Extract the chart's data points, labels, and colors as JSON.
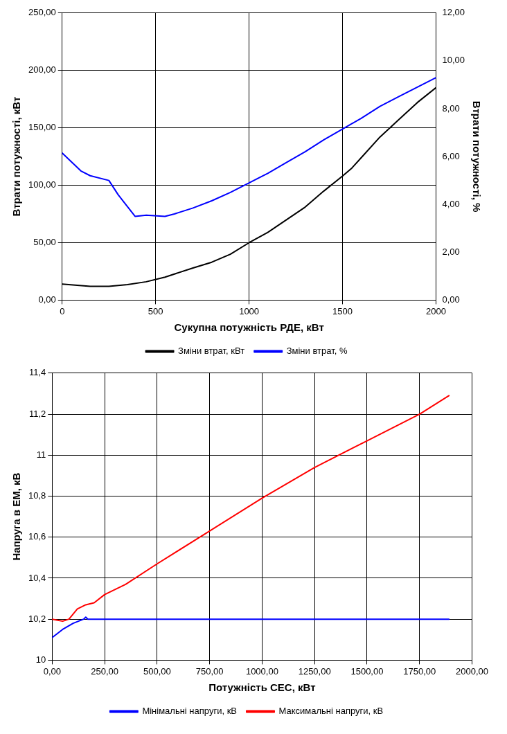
{
  "chart_data": [
    {
      "type": "line",
      "xlabel": "Сукупна потужність РДЕ, кВт",
      "ylabel": "Втрати потужності, кВт",
      "y2label": "Втрати потужності, %",
      "xlim": [
        0,
        2000
      ],
      "xticks": [
        0,
        500,
        1000,
        1500,
        2000
      ],
      "ylim": [
        0,
        250
      ],
      "yticks": [
        {
          "value": 0,
          "label": "0,00"
        },
        {
          "value": 50,
          "label": "50,00"
        },
        {
          "value": 100,
          "label": "100,00"
        },
        {
          "value": 150,
          "label": "150,00"
        },
        {
          "value": 200,
          "label": "200,00"
        },
        {
          "value": 250,
          "label": "250,00"
        }
      ],
      "y2lim": [
        0,
        12
      ],
      "y2ticks": [
        {
          "value": 0,
          "label": "0,00"
        },
        {
          "value": 2,
          "label": "2,00"
        },
        {
          "value": 4,
          "label": "4,00"
        },
        {
          "value": 6,
          "label": "6,00"
        },
        {
          "value": 8,
          "label": "8,00"
        },
        {
          "value": 10,
          "label": "10,00"
        },
        {
          "value": 12,
          "label": "12,00"
        }
      ],
      "grid": true,
      "legend": "bottom",
      "marker": "none",
      "line_style": "solid",
      "series": [
        {
          "name": "Зміни втрат, кВт",
          "color": "#000000",
          "x": [
            0,
            150,
            250,
            350,
            450,
            550,
            700,
            800,
            900,
            1000,
            1100,
            1200,
            1300,
            1400,
            1500,
            1550,
            1600,
            1700,
            1800,
            1900,
            2000
          ],
          "values": [
            14,
            12,
            12,
            13.5,
            16,
            20,
            28,
            33,
            40,
            50,
            59,
            70,
            81,
            95,
            108,
            115,
            124,
            142,
            157,
            172,
            185
          ]
        },
        {
          "name": "Зміни втрат, %",
          "color": "#0000ff",
          "axis": "y2",
          "x": [
            0,
            100,
            150,
            250,
            300,
            350,
            390,
            450,
            550,
            600,
            700,
            800,
            900,
            1000,
            1100,
            1200,
            1300,
            1400,
            1500,
            1600,
            1700,
            1800,
            1900,
            2000
          ],
          "values": [
            6.15,
            5.4,
            5.2,
            5.0,
            4.4,
            3.9,
            3.5,
            3.55,
            3.5,
            3.6,
            3.85,
            4.15,
            4.5,
            4.9,
            5.3,
            5.75,
            6.2,
            6.7,
            7.15,
            7.6,
            8.1,
            8.5,
            8.9,
            9.3
          ]
        }
      ]
    },
    {
      "type": "line",
      "xlabel": "Потужність СЕС, кВт",
      "ylabel": "Напруга в ЕМ, кВ",
      "xlim": [
        0,
        2000
      ],
      "xticks": [
        {
          "value": 0,
          "label": "0,00"
        },
        {
          "value": 250,
          "label": "250,00"
        },
        {
          "value": 500,
          "label": "500,00"
        },
        {
          "value": 750,
          "label": "750,00"
        },
        {
          "value": 1000,
          "label": "1000,00"
        },
        {
          "value": 1250,
          "label": "1250,00"
        },
        {
          "value": 1500,
          "label": "1500,00"
        },
        {
          "value": 1750,
          "label": "1750,00"
        },
        {
          "value": 2000,
          "label": "2000,00"
        }
      ],
      "ylim": [
        10,
        11.4
      ],
      "yticks": [
        10,
        {
          "value": 10.2,
          "label": "10,2"
        },
        {
          "value": 10.4,
          "label": "10,4"
        },
        {
          "value": 10.6,
          "label": "10,6"
        },
        {
          "value": 10.8,
          "label": "10,8"
        },
        11,
        {
          "value": 11.2,
          "label": "11,2"
        },
        {
          "value": 11.4,
          "label": "11,4"
        }
      ],
      "grid": true,
      "legend": "bottom",
      "marker": "none",
      "line_style": "solid",
      "series": [
        {
          "name": "Мінімальні напруги, кВ",
          "color": "#0000ff",
          "x": [
            0,
            50,
            100,
            150,
            160,
            170,
            1890
          ],
          "values": [
            10.11,
            10.15,
            10.18,
            10.2,
            10.21,
            10.2,
            10.2
          ]
        },
        {
          "name": "Максимальні напруги, кВ",
          "color": "#ff0000",
          "x": [
            0,
            50,
            80,
            120,
            160,
            200,
            250,
            350,
            500,
            750,
            1000,
            1250,
            1500,
            1750,
            1890
          ],
          "values": [
            10.2,
            10.19,
            10.2,
            10.25,
            10.27,
            10.28,
            10.32,
            10.37,
            10.47,
            10.63,
            10.79,
            10.94,
            11.07,
            11.2,
            11.29
          ]
        }
      ]
    }
  ]
}
